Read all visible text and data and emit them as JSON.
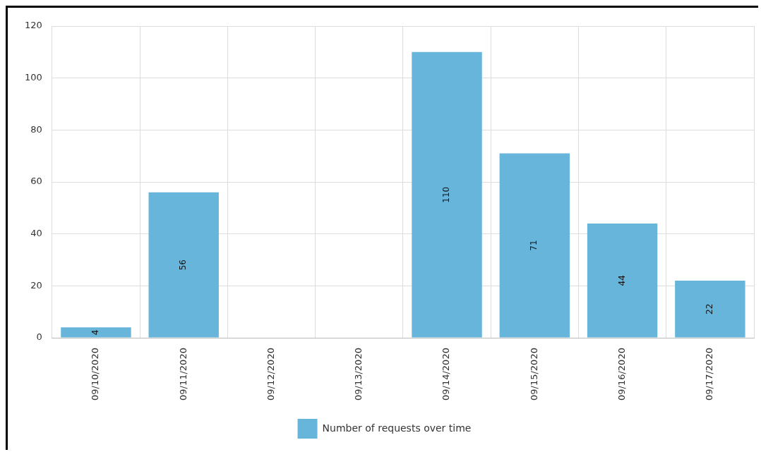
{
  "chart_data": {
    "type": "bar",
    "categories": [
      "09/10/2020",
      "09/11/2020",
      "09/12/2020",
      "09/13/2020",
      "09/14/2020",
      "09/15/2020",
      "09/16/2020",
      "09/17/2020"
    ],
    "series": [
      {
        "name": "Number of requests over time",
        "color": "#67b5db",
        "values": [
          4,
          56,
          0,
          0,
          110,
          71,
          44,
          22
        ],
        "value_labels": [
          "4",
          "56",
          null,
          null,
          "110",
          "71",
          "44",
          "22"
        ]
      }
    ],
    "ylim": [
      0,
      120
    ],
    "yticks": [
      0,
      20,
      40,
      60,
      80,
      100,
      120
    ],
    "grid": true,
    "legend": "bottom"
  }
}
